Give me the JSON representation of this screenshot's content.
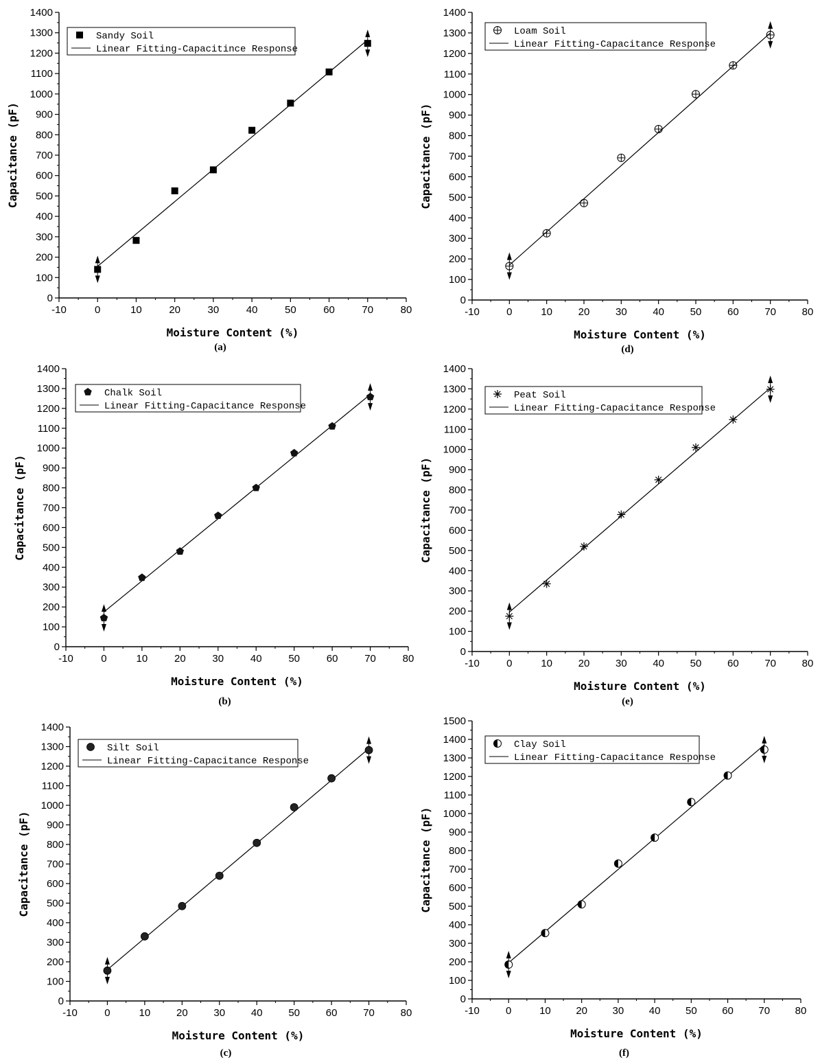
{
  "chart_data": [
    {
      "type": "scatter",
      "panel_label": "(a)",
      "xlabel": "Moisture Content (%)",
      "ylabel": "Capacitance (pF)",
      "xlim": [
        -10,
        80
      ],
      "ylim": [
        0,
        1400
      ],
      "x_ticks": [
        -10,
        0,
        10,
        20,
        30,
        40,
        50,
        60,
        70,
        80
      ],
      "y_ticks": [
        0,
        100,
        200,
        300,
        400,
        500,
        600,
        700,
        800,
        900,
        1000,
        1100,
        1200,
        1300,
        1400
      ],
      "legend_position": "top-left",
      "marker": "square",
      "series": [
        {
          "name": "Sandy Soil",
          "x": [
            0,
            10,
            20,
            30,
            40,
            50,
            60,
            70
          ],
          "y": [
            140,
            282,
            525,
            628,
            822,
            955,
            1108,
            1248
          ]
        }
      ],
      "fit": {
        "name": "Linear Fitting-Capacitince Response",
        "x": [
          0,
          70
        ],
        "y": [
          155,
          1265
        ]
      }
    },
    {
      "type": "scatter",
      "panel_label": "(b)",
      "xlabel": "Moisture Content (%)",
      "ylabel": "Capacitance (pF)",
      "xlim": [
        -10,
        80
      ],
      "ylim": [
        0,
        1400
      ],
      "x_ticks": [
        -10,
        0,
        10,
        20,
        30,
        40,
        50,
        60,
        70,
        80
      ],
      "y_ticks": [
        0,
        100,
        200,
        300,
        400,
        500,
        600,
        700,
        800,
        900,
        1000,
        1100,
        1200,
        1300,
        1400
      ],
      "legend_position": "top-left",
      "marker": "pentagon",
      "series": [
        {
          "name": "Chalk Soil",
          "x": [
            0,
            10,
            20,
            30,
            40,
            50,
            60,
            70
          ],
          "y": [
            145,
            348,
            480,
            660,
            800,
            975,
            1110,
            1258
          ]
        }
      ],
      "fit": {
        "name": "Linear Fitting-Capacitance Response",
        "x": [
          0,
          70
        ],
        "y": [
          175,
          1270
        ]
      }
    },
    {
      "type": "scatter",
      "panel_label": "(c)",
      "xlabel": "Moisture Content (%)",
      "ylabel": "Capacitance (pF)",
      "xlim": [
        -10,
        80
      ],
      "ylim": [
        0,
        1400
      ],
      "x_ticks": [
        -10,
        0,
        10,
        20,
        30,
        40,
        50,
        60,
        70,
        80
      ],
      "y_ticks": [
        0,
        100,
        200,
        300,
        400,
        500,
        600,
        700,
        800,
        900,
        1000,
        1100,
        1200,
        1300,
        1400
      ],
      "legend_position": "top-left",
      "marker": "circle",
      "series": [
        {
          "name": "Silt Soil",
          "x": [
            0,
            10,
            20,
            30,
            40,
            50,
            60,
            70
          ],
          "y": [
            155,
            330,
            485,
            640,
            808,
            990,
            1138,
            1282
          ]
        }
      ],
      "fit": {
        "name": "Linear Fitting-Capacitance Response",
        "x": [
          0,
          70
        ],
        "y": [
          160,
          1290
        ]
      }
    },
    {
      "type": "scatter",
      "panel_label": "(d)",
      "xlabel": "Moisture Content (%)",
      "ylabel": "Capacitance (pF)",
      "xlim": [
        -10,
        80
      ],
      "ylim": [
        0,
        1400
      ],
      "x_ticks": [
        -10,
        0,
        10,
        20,
        30,
        40,
        50,
        60,
        70,
        80
      ],
      "y_ticks": [
        0,
        100,
        200,
        300,
        400,
        500,
        600,
        700,
        800,
        900,
        1000,
        1100,
        1200,
        1300,
        1400
      ],
      "legend_position": "top-left",
      "marker": "circle-plus",
      "series": [
        {
          "name": "Loam Soil",
          "x": [
            0,
            10,
            20,
            30,
            40,
            50,
            60,
            70
          ],
          "y": [
            165,
            325,
            472,
            692,
            832,
            1002,
            1142,
            1290
          ]
        }
      ],
      "fit": {
        "name": "Linear Fitting-Capacitance Response",
        "x": [
          0,
          70
        ],
        "y": [
          170,
          1300
        ]
      }
    },
    {
      "type": "scatter",
      "panel_label": "(e)",
      "xlabel": "Moisture Content (%)",
      "ylabel": "Capacitance (pF)",
      "xlim": [
        -10,
        80
      ],
      "ylim": [
        0,
        1400
      ],
      "x_ticks": [
        -10,
        0,
        10,
        20,
        30,
        40,
        50,
        60,
        70,
        80
      ],
      "y_ticks": [
        0,
        100,
        200,
        300,
        400,
        500,
        600,
        700,
        800,
        900,
        1000,
        1100,
        1200,
        1300,
        1400
      ],
      "legend_position": "top-left",
      "marker": "asterisk",
      "series": [
        {
          "name": "Peat Soil",
          "x": [
            0,
            10,
            20,
            30,
            40,
            50,
            60,
            70
          ],
          "y": [
            175,
            335,
            520,
            678,
            850,
            1010,
            1148,
            1298
          ]
        }
      ],
      "fit": {
        "name": "Linear Fitting-Capacitance Response",
        "x": [
          0,
          70
        ],
        "y": [
          195,
          1305
        ]
      }
    },
    {
      "type": "scatter",
      "panel_label": "(f)",
      "xlabel": "Moisture Content (%)",
      "ylabel": "Capacitance (pF)",
      "xlim": [
        -10,
        80
      ],
      "ylim": [
        0,
        1500
      ],
      "x_ticks": [
        -10,
        0,
        10,
        20,
        30,
        40,
        50,
        60,
        70,
        80
      ],
      "y_ticks": [
        0,
        100,
        200,
        300,
        400,
        500,
        600,
        700,
        800,
        900,
        1000,
        1100,
        1200,
        1300,
        1400,
        1500
      ],
      "legend_position": "top-left",
      "marker": "half-circle",
      "series": [
        {
          "name": "Clay Soil",
          "x": [
            0,
            10,
            20,
            30,
            40,
            50,
            60,
            70
          ],
          "y": [
            185,
            355,
            510,
            730,
            870,
            1062,
            1205,
            1345
          ]
        }
      ],
      "fit": {
        "name": "Linear Fitting-Capacitance Response",
        "x": [
          0,
          70
        ],
        "y": [
          195,
          1370
        ]
      }
    }
  ]
}
